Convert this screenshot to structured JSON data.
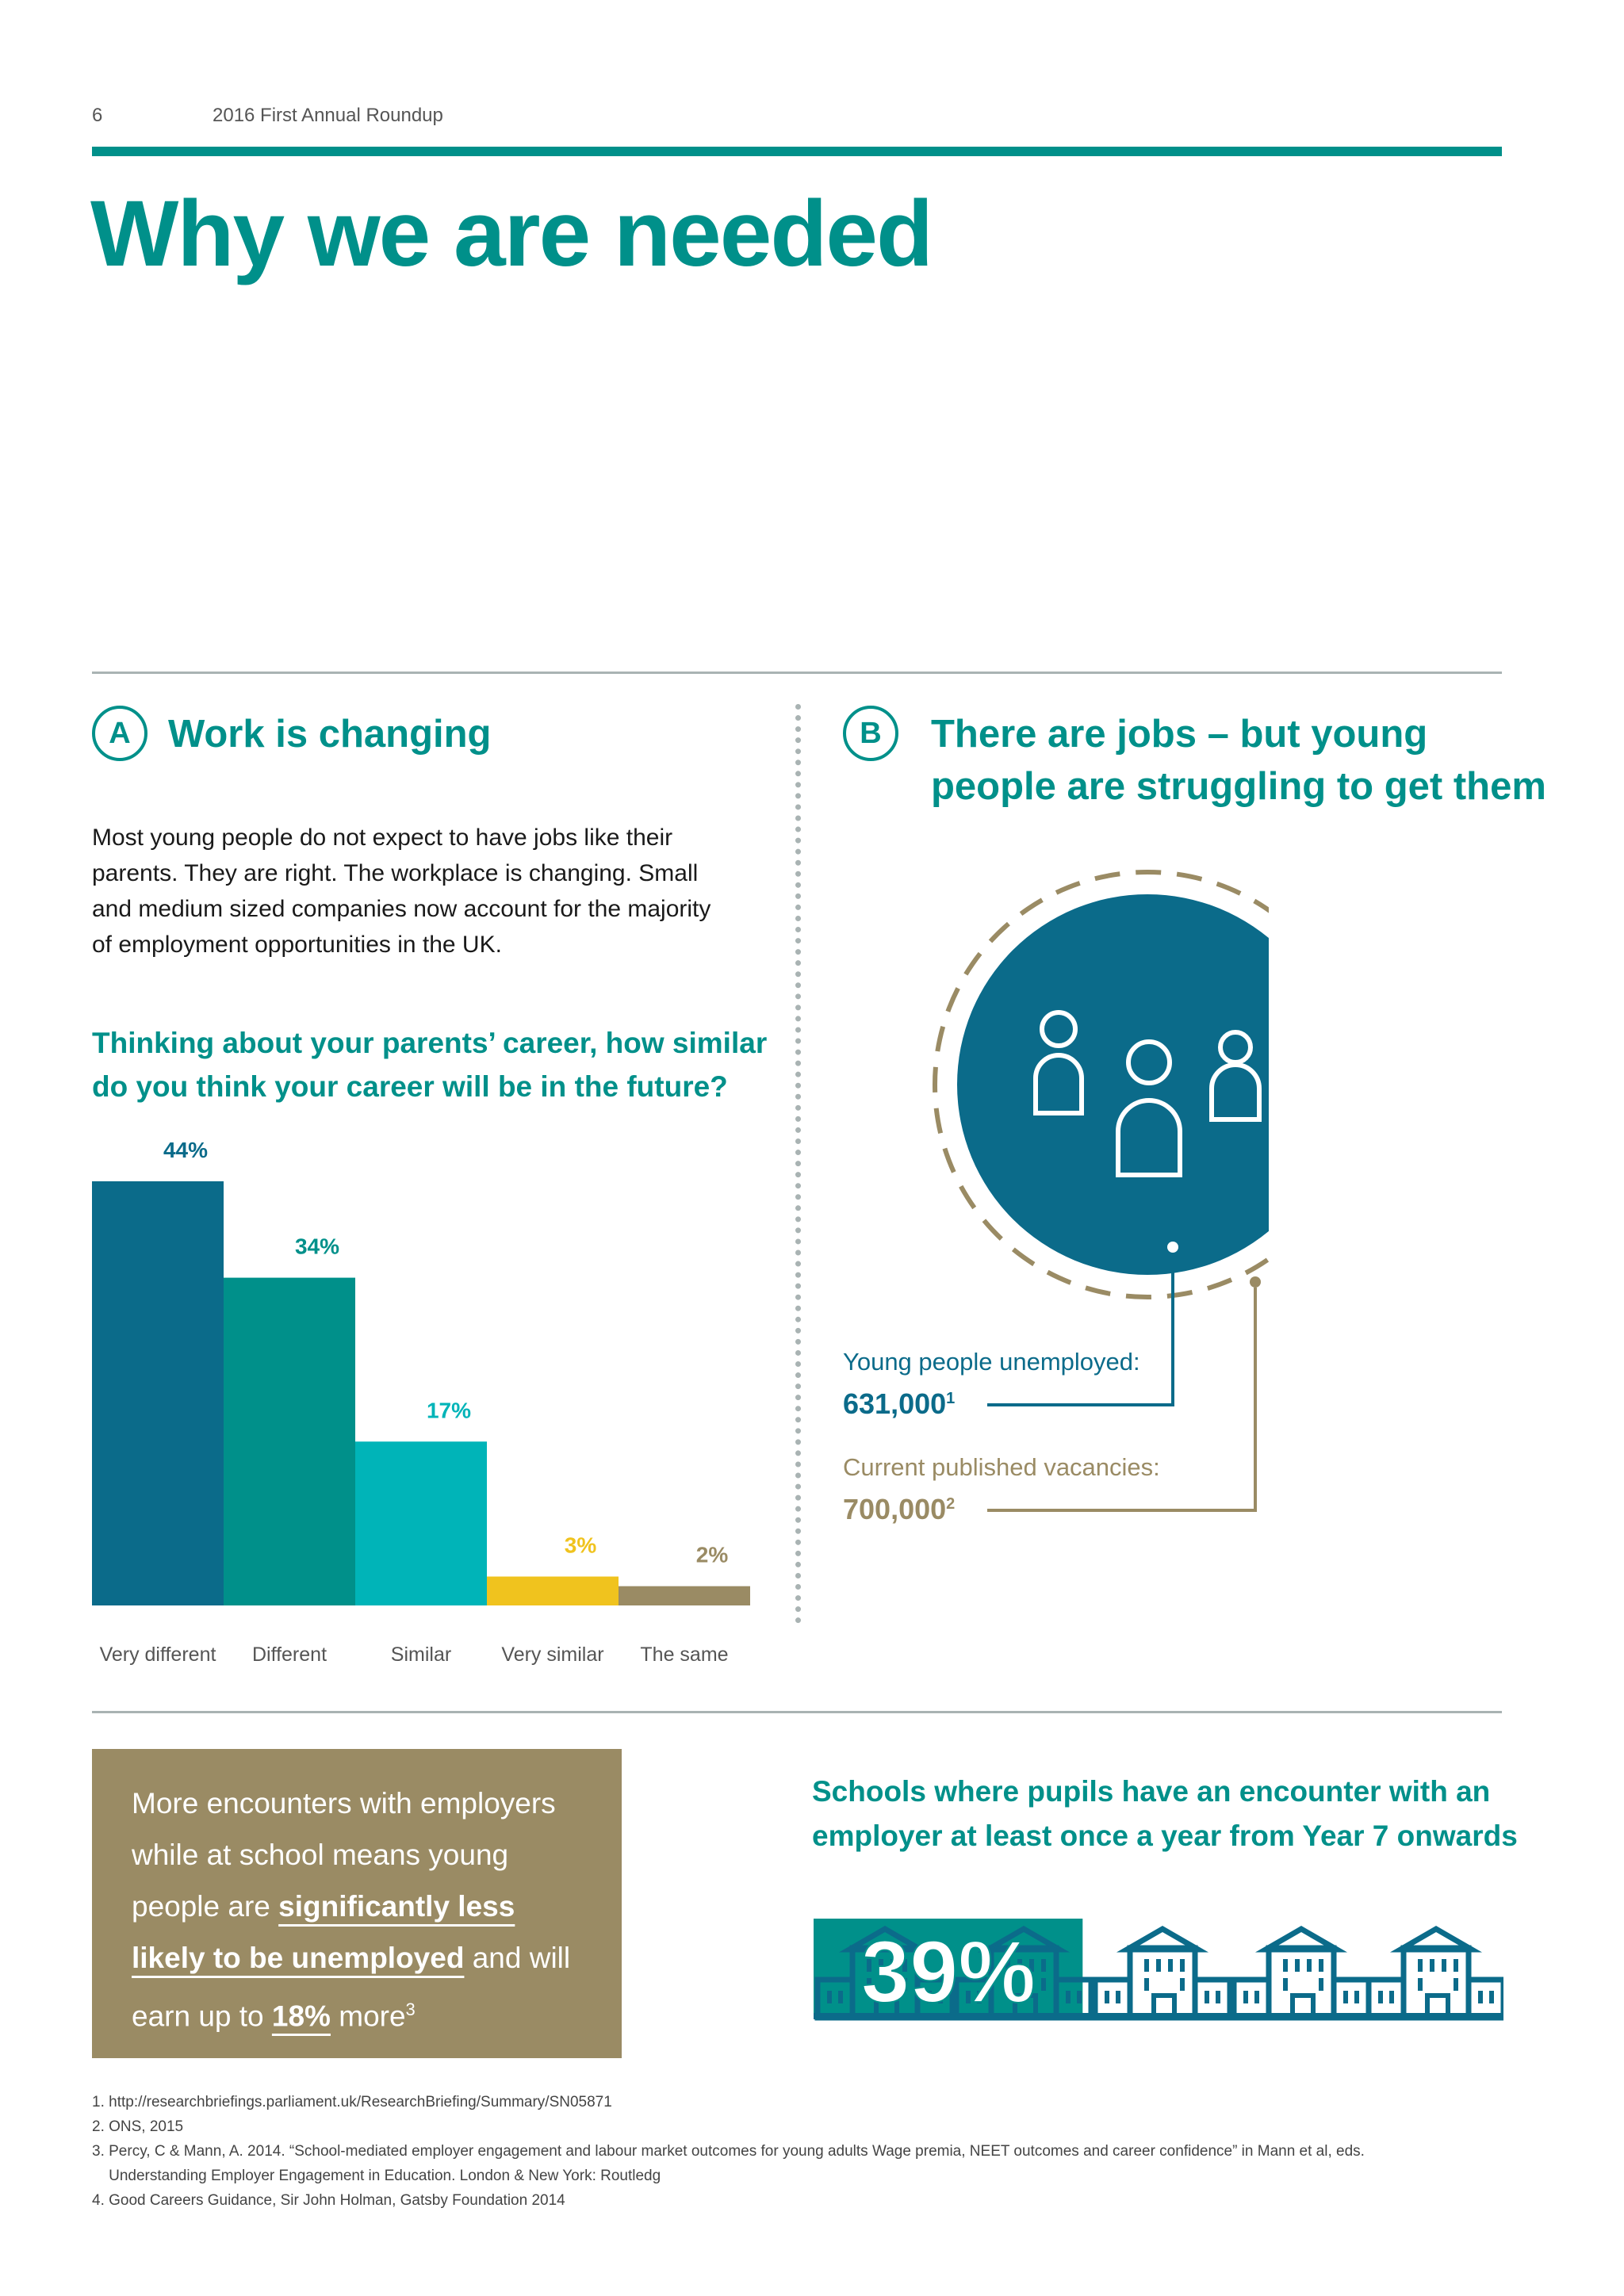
{
  "header": {
    "page_number": "6",
    "publication": "2016 First Annual Roundup"
  },
  "title": "Why we are needed",
  "section_a": {
    "badge": "A",
    "title": "Work is changing",
    "body": [
      "Most young people do not expect to have jobs like their",
      "parents. They are right. The workplace is changing. Small",
      "and medium sized companies now account for the majority",
      "of employment opportunities in the UK."
    ],
    "question": [
      "Thinking about your parents’ career, how similar",
      "do you think your career will be in the future?"
    ]
  },
  "chart_data": {
    "type": "bar",
    "title": "Thinking about your parents’ career, how similar do you think your career will be in the future?",
    "categories": [
      "Very different",
      "Different",
      "Similar",
      "Very similar",
      "The same"
    ],
    "values": [
      44,
      34,
      17,
      3,
      2
    ],
    "value_labels": [
      "44%",
      "34%",
      "17%",
      "3%",
      "2%"
    ],
    "colors": [
      "#0b6b8a",
      "#00908a",
      "#00b4b8",
      "#f0c31e",
      "#9a8b64"
    ],
    "ylim": [
      0,
      44
    ],
    "grid": false
  },
  "section_b": {
    "badge": "B",
    "title_lines": [
      "There are jobs – but young",
      "people are struggling to get them"
    ],
    "unemployed_label": "Young people unemployed:",
    "unemployed_value": "631,000",
    "unemployed_ref": "1",
    "vacancies_label": "Current published vacancies:",
    "vacancies_value": "700,000",
    "vacancies_ref": "2",
    "icon": "people-group-icon"
  },
  "callout": {
    "text_1": "More encounters with employers while at school means young people are ",
    "highlight_1": "significantly less likely to be unemployed",
    "text_2": " and will earn up to ",
    "highlight_2": "18%",
    "text_3": " more",
    "ref": "3"
  },
  "schools": {
    "heading_lines": [
      "Schools where pupils have an encounter with an",
      "employer at least once a year from Year 7 onwards"
    ],
    "percent": "39%",
    "percent_value": 39,
    "icon": "school-building-icon"
  },
  "footnotes": [
    "1. http://researchbriefings.parliament.uk/ResearchBriefing/Summary/SN05871",
    "2. ONS, 2015",
    "3. Percy, C & Mann, A. 2014. “School-mediated employer engagement and labour market outcomes for young adults Wage premia, NEET outcomes and career confidence” in Mann et al, eds.",
    "    Understanding Employer Engagement in Education. London & New York: Routledg",
    "4. Good Careers Guidance, Sir John Holman, Gatsby Foundation 2014"
  ],
  "colors": {
    "teal": "#00908a",
    "navy": "#0b6b8a",
    "gold": "#9a8b64",
    "yellow": "#f0c31e",
    "cyan": "#00b4b8"
  }
}
